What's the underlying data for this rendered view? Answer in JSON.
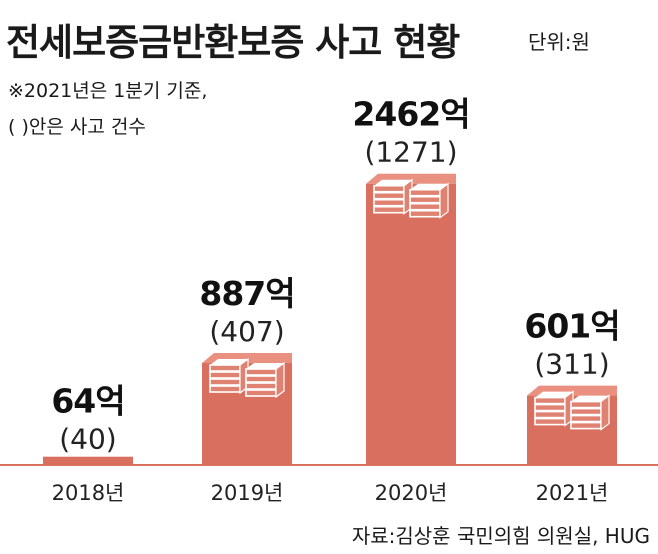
{
  "header": {
    "title": "전세보증금반환보증 사고 현황",
    "unit": "단위:원"
  },
  "notes": {
    "line1": "※2021년은 1분기 기준,",
    "line2": "(  )안은 사고 건수"
  },
  "source": "자료:김상훈 국민의힘 의원실, HUG",
  "colors": {
    "bar": "#d9705f",
    "bar_top": "#e99080",
    "money_fill": "#e08272",
    "money_line": "#ffffff",
    "baseline": "#d9705f"
  },
  "chart_data": {
    "type": "bar",
    "title": "전세보증금반환보증 사고 현황",
    "unit": "억원",
    "categories": [
      "2018년",
      "2019년",
      "2020년",
      "2021년"
    ],
    "values": [
      64,
      887,
      2462,
      601
    ],
    "value_labels": [
      "64억",
      "887억",
      "2462억",
      "601억"
    ],
    "counts": [
      40,
      407,
      1271,
      311
    ],
    "count_labels": [
      "(40)",
      "(407)",
      "(1271)",
      "(311)"
    ],
    "xlabel": "",
    "ylabel": "",
    "ylim": [
      0,
      2600
    ],
    "grid": false,
    "legend": "none"
  }
}
